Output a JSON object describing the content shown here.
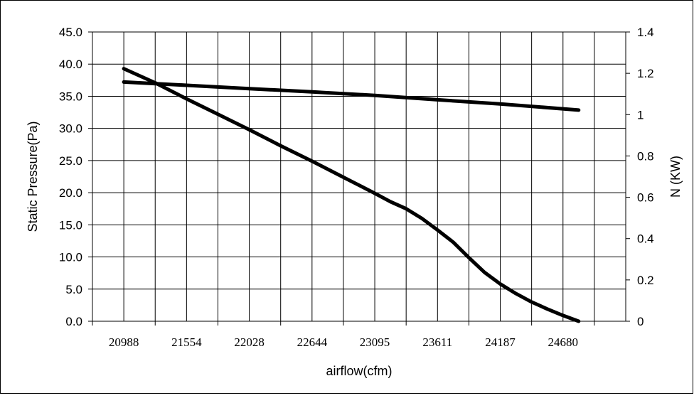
{
  "chart_data": {
    "type": "line",
    "title": "",
    "xlabel": "airflow(cfm)",
    "ylabel": "Static Pressure(Pa)",
    "y2label": "N (KW)",
    "x_tick_labels": [
      "20988",
      "21554",
      "22028",
      "22644",
      "23095",
      "23611",
      "24187",
      "24680"
    ],
    "y_ticks": [
      "0.0",
      "5.0",
      "10.0",
      "15.0",
      "20.0",
      "25.0",
      "30.0",
      "35.0",
      "40.0",
      "45.0"
    ],
    "y2_ticks": [
      "0",
      "0.2",
      "0.4",
      "0.6",
      "0.8",
      "1",
      "1.2",
      "1.4"
    ],
    "ylim": [
      0,
      45
    ],
    "y2lim": [
      0,
      1.4
    ],
    "grid": true,
    "series": [
      {
        "axis": "left",
        "points": [
          [
            0,
            39.3
          ],
          [
            0.5,
            37.1
          ],
          [
            1,
            34.6
          ],
          [
            1.5,
            32.2
          ],
          [
            2,
            29.8
          ],
          [
            2.5,
            27.3
          ],
          [
            3,
            24.9
          ],
          [
            3.5,
            22.4
          ],
          [
            4,
            19.9
          ],
          [
            4.25,
            18.6
          ],
          [
            4.5,
            17.5
          ],
          [
            4.75,
            16.0
          ],
          [
            5,
            14.2
          ],
          [
            5.25,
            12.3
          ],
          [
            5.5,
            9.9
          ],
          [
            5.75,
            7.6
          ],
          [
            6,
            5.8
          ],
          [
            6.25,
            4.3
          ],
          [
            6.5,
            3.0
          ],
          [
            6.75,
            1.9
          ],
          [
            7,
            0.9
          ],
          [
            7.25,
            0.0
          ]
        ]
      },
      {
        "axis": "right",
        "points": [
          [
            0,
            1.158
          ],
          [
            1,
            1.142
          ],
          [
            2,
            1.126
          ],
          [
            3,
            1.11
          ],
          [
            4,
            1.093
          ],
          [
            5,
            1.072
          ],
          [
            6,
            1.052
          ],
          [
            7.25,
            1.022
          ]
        ]
      }
    ],
    "colors": {
      "line": "#000000",
      "grid": "#000000",
      "frame": "#000000"
    }
  }
}
